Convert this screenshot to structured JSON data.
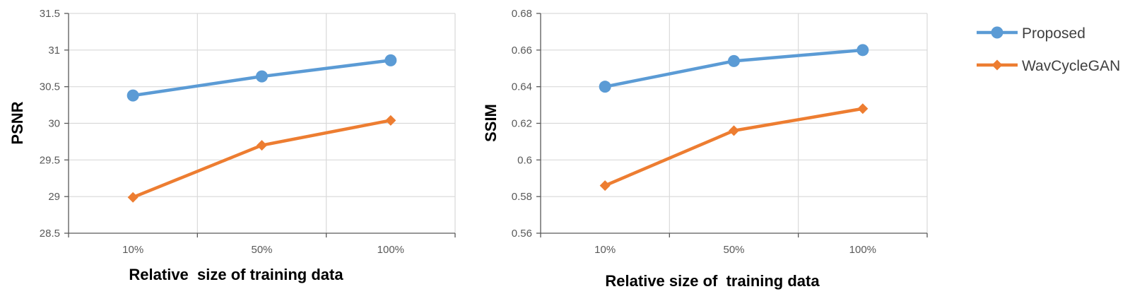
{
  "chart_data": [
    {
      "type": "line",
      "categories": [
        "10%",
        "50%",
        "100%"
      ],
      "xlabel": "Relative  size of training data",
      "ylabel": "PSNR",
      "ylim": [
        28.5,
        31.5
      ],
      "yticks": [
        "28.5",
        "29",
        "29.5",
        "30",
        "30.5",
        "31",
        "31.5"
      ],
      "grid": true,
      "series": [
        {
          "name": "Proposed",
          "values": [
            30.38,
            30.64,
            30.86
          ]
        },
        {
          "name": "WavCycleGAN",
          "values": [
            28.99,
            29.7,
            30.04
          ]
        }
      ]
    },
    {
      "type": "line",
      "categories": [
        "10%",
        "50%",
        "100%"
      ],
      "xlabel": "Relative size of  training data",
      "ylabel": "SSIM",
      "ylim": [
        0.56,
        0.68
      ],
      "yticks": [
        "0.56",
        "0.58",
        "0.6",
        "0.62",
        "0.64",
        "0.66",
        "0.68"
      ],
      "grid": true,
      "legend_position": "right",
      "series": [
        {
          "name": "Proposed",
          "values": [
            0.64,
            0.654,
            0.66
          ]
        },
        {
          "name": "WavCycleGAN",
          "values": [
            0.586,
            0.616,
            0.628
          ]
        }
      ]
    }
  ],
  "colors": {
    "Proposed": "#5b9bd5",
    "WavCycleGAN": "#ed7d31",
    "grid": "#d9d9d9",
    "axis": "#595959"
  },
  "series_markers": {
    "Proposed": "circle",
    "WavCycleGAN": "diamond"
  }
}
